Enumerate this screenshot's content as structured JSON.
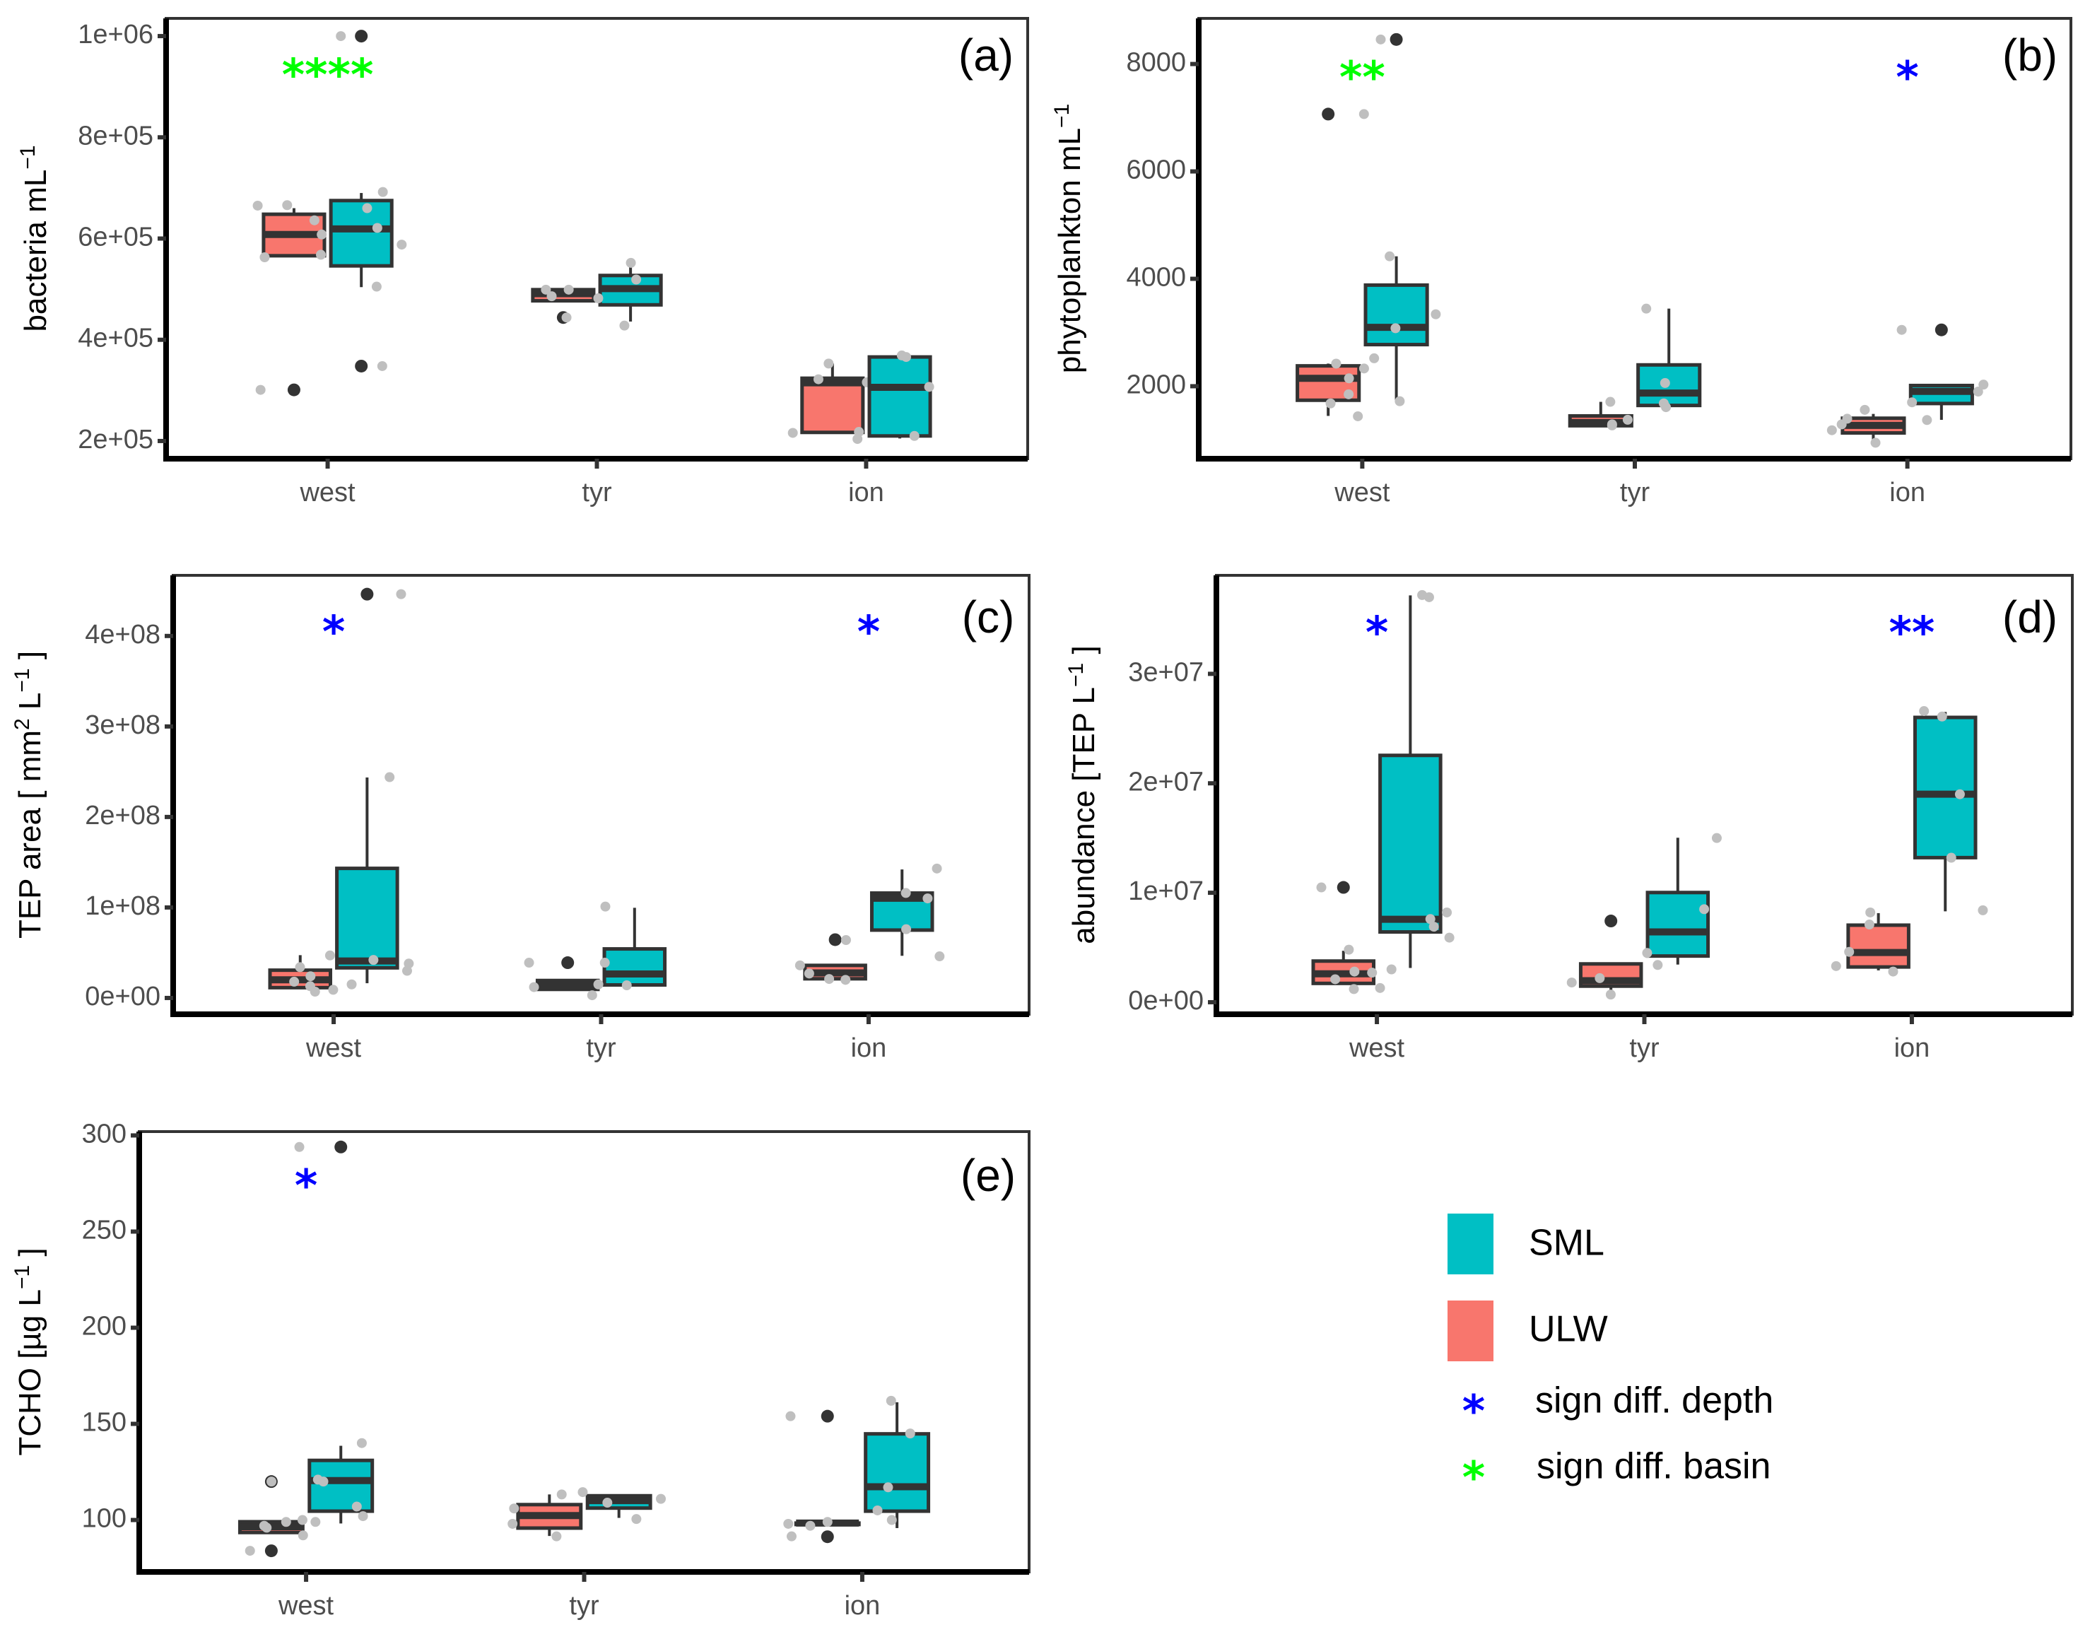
{
  "chart_data": [
    {
      "type": "box",
      "panel_tag": "(a)",
      "ylabel": "bacteria mL",
      "ylabel_sup": "−1",
      "categories": [
        "west",
        "tyr",
        "ion"
      ],
      "yticks": [
        200000,
        400000,
        600000,
        800000,
        1000000
      ],
      "ytick_labels": [
        "2e+05",
        "4e+05",
        "6e+05",
        "8e+05",
        "1e+06"
      ],
      "ylim": [
        165000,
        1035000
      ],
      "series": [
        {
          "name": "ULW",
          "boxes": [
            {
              "category": "west",
              "q1": 566000,
              "median": 608000,
              "q3": 648000,
              "lower": 566000,
              "upper": 660000,
              "outliers": [
                301000
              ],
              "points": [
                636000,
                665000,
                666000,
                608000,
                563000,
                568000,
                301000
              ]
            },
            {
              "category": "tyr",
              "q1": 477000,
              "median": 491000,
              "q3": 499000,
              "lower": 477000,
              "upper": 499000,
              "outliers": [
                444000
              ],
              "points": [
                499000,
                486000,
                499000,
                444000
              ]
            },
            {
              "category": "ion",
              "q1": 217000,
              "median": 315000,
              "q3": 324000,
              "lower": 217000,
              "upper": 353000,
              "outliers": [],
              "points": [
                353000,
                322000,
                316000,
                216000,
                218000
              ]
            }
          ]
        },
        {
          "name": "SML",
          "boxes": [
            {
              "category": "west",
              "q1": 546000,
              "median": 619000,
              "q3": 675000,
              "lower": 504000,
              "upper": 690000,
              "outliers": [
                1000000,
                348000
              ],
              "points": [
                692000,
                660000,
                621000,
                588000,
                505000,
                1000000,
                348000
              ]
            },
            {
              "category": "tyr",
              "q1": 469000,
              "median": 501000,
              "q3": 527000,
              "lower": 436000,
              "upper": 552000,
              "outliers": [],
              "points": [
                552000,
                519000,
                482000,
                428000
              ]
            },
            {
              "category": "ion",
              "q1": 210000,
              "median": 306000,
              "q3": 366000,
              "lower": 205000,
              "upper": 366000,
              "outliers": [],
              "points": [
                369000,
                366000,
                307000,
                204000,
                210000
              ]
            }
          ]
        }
      ],
      "significance": [
        {
          "category": "west",
          "label": "****",
          "kind": "basin",
          "y": 924000
        }
      ]
    },
    {
      "type": "box",
      "panel_tag": "(b)",
      "ylabel": "phytoplankton mL",
      "ylabel_sup": "−1",
      "categories": [
        "west",
        "tyr",
        "ion"
      ],
      "yticks": [
        2000,
        4000,
        6000,
        8000
      ],
      "ytick_labels": [
        "2000",
        "4000",
        "6000",
        "8000"
      ],
      "ylim": [
        650,
        8850
      ],
      "series": [
        {
          "name": "ULW",
          "boxes": [
            {
              "category": "west",
              "q1": 1739,
              "median": 2147,
              "q3": 2379,
              "lower": 1447,
              "upper": 2421,
              "outliers": [
                7068
              ],
              "points": [
                2421,
                2330,
                2147,
                1850,
                1680,
                1440,
                7068
              ]
            },
            {
              "category": "tyr",
              "q1": 1264,
              "median": 1325,
              "q3": 1447,
              "lower": 1264,
              "upper": 1709,
              "outliers": [],
              "points": [
                1709,
                1375,
                1290,
                1270
              ]
            },
            {
              "category": "ion",
              "q1": 1130,
              "median": 1270,
              "q3": 1404,
              "lower": 947,
              "upper": 1484,
              "outliers": [],
              "points": [
                1560,
                1395,
                1290,
                1180,
                947
              ]
            }
          ]
        },
        {
          "name": "SML",
          "boxes": [
            {
              "category": "west",
              "q1": 2775,
              "median": 3097,
              "q3": 3883,
              "lower": 1721,
              "upper": 4419,
              "outliers": [
                8457
              ],
              "points": [
                4419,
                3340,
                3080,
                2520,
                1721,
                8457
              ]
            },
            {
              "category": "tyr",
              "q1": 1642,
              "median": 1873,
              "q3": 2397,
              "lower": 1618,
              "upper": 3445,
              "outliers": [],
              "points": [
                3445,
                2060,
                1680,
                1610
              ]
            },
            {
              "category": "ion",
              "q1": 1678,
              "median": 1904,
              "q3": 2013,
              "lower": 1374,
              "upper": 2013,
              "outliers": [
                3049
              ],
              "points": [
                2030,
                1900,
                1700,
                1370,
                3049
              ]
            }
          ]
        }
      ],
      "significance": [
        {
          "category": "west",
          "label": "**",
          "kind": "basin",
          "y": 7756
        },
        {
          "category": "ion",
          "label": "*",
          "kind": "depth",
          "y": 7756
        }
      ]
    },
    {
      "type": "box",
      "panel_tag": "(c)",
      "ylabel": "TEP area [ mm",
      "ylabel_sup": "2",
      "ylabel_tail": "  L",
      "ylabel_tail_sup": "−1",
      "ylabel_close": "]",
      "categories": [
        "west",
        "tyr",
        "ion"
      ],
      "yticks": [
        0,
        100000000,
        200000000,
        300000000,
        400000000
      ],
      "ytick_labels": [
        "0e+00",
        "1e+08",
        "2e+08",
        "3e+08",
        "4e+08"
      ],
      "ylim": [
        -18000000,
        467000000
      ],
      "series": [
        {
          "name": "ULW",
          "boxes": [
            {
              "category": "west",
              "q1": 11400000,
              "median": 20100000,
              "q3": 30700000,
              "lower": 11400000,
              "upper": 47300000,
              "outliers": [],
              "points": [
                47000000,
                34000000,
                24000000,
                18000000,
                13000000,
                9000000,
                7000000
              ]
            },
            {
              "category": "tyr",
              "q1": 9500000,
              "median": 15200000,
              "q3": 19300000,
              "lower": 9500000,
              "upper": 19300000,
              "outliers": [
                39000000
              ],
              "points": [
                39000000,
                12000000,
                3000000
              ]
            },
            {
              "category": "ion",
              "q1": 21200000,
              "median": 27700000,
              "q3": 36000000,
              "lower": 21200000,
              "upper": 36000000,
              "outliers": [
                64400000
              ],
              "points": [
                64000000,
                36000000,
                27000000,
                21000000,
                20000000
              ]
            }
          ]
        },
        {
          "name": "SML",
          "boxes": [
            {
              "category": "west",
              "q1": 33300000,
              "median": 40900000,
              "q3": 143200000,
              "lower": 16300000,
              "upper": 243600000,
              "outliers": [
                446200000
              ],
              "points": [
                244000000,
                42000000,
                38000000,
                30000000,
                15000000,
                446200000
              ]
            },
            {
              "category": "tyr",
              "q1": 14400000,
              "median": 26500000,
              "q3": 54200000,
              "lower": 14400000,
              "upper": 99600000,
              "outliers": [],
              "points": [
                101000000,
                39000000,
                15000000,
                14000000
              ]
            },
            {
              "category": "ion",
              "q1": 75000000,
              "median": 110200000,
              "q3": 115900000,
              "lower": 46600000,
              "upper": 142000000,
              "outliers": [],
              "points": [
                143000000,
                116000000,
                110000000,
                76000000,
                46000000
              ]
            }
          ]
        }
      ],
      "significance": [
        {
          "category": "west",
          "label": "*",
          "kind": "depth",
          "y": 405000000
        },
        {
          "category": "ion",
          "label": "*",
          "kind": "depth",
          "y": 405000000
        }
      ]
    },
    {
      "type": "box",
      "panel_tag": "(d)",
      "ylabel": "abundance [TEP",
      "ylabel_tail": "  L",
      "ylabel_tail_sup": "−1",
      "ylabel_close": "]",
      "categories": [
        "west",
        "tyr",
        "ion"
      ],
      "yticks": [
        0,
        10000000,
        20000000,
        30000000
      ],
      "ytick_labels": [
        "0e+00",
        "1e+07",
        "2e+07",
        "3e+07"
      ],
      "ylim": [
        -1100000,
        39000000
      ],
      "series": [
        {
          "name": "ULW",
          "boxes": [
            {
              "category": "west",
              "q1": 1720000,
              "median": 2600000,
              "q3": 3760000,
              "lower": 1720000,
              "upper": 4700000,
              "outliers": [
                10490000
              ],
              "points": [
                4800000,
                2800000,
                2700000,
                2100000,
                1300000,
                1200000,
                10490000
              ]
            },
            {
              "category": "tyr",
              "q1": 1470000,
              "median": 1970000,
              "q3": 3500000,
              "lower": 620000,
              "upper": 3500000,
              "outliers": [
                7420000
              ],
              "points": [
                2200000,
                1800000,
                700000,
                7400000
              ]
            },
            {
              "category": "ion",
              "q1": 3220000,
              "median": 4540000,
              "q3": 7040000,
              "lower": 2910000,
              "upper": 8140000,
              "outliers": [],
              "points": [
                8200000,
                7100000,
                4600000,
                3300000,
                2800000
              ]
            }
          ]
        },
        {
          "name": "SML",
          "boxes": [
            {
              "category": "west",
              "q1": 6420000,
              "median": 7580000,
              "q3": 22550000,
              "lower": 3130000,
              "upper": 37170000,
              "outliers": [],
              "points": [
                37200000,
                37000000,
                8200000,
                7600000,
                6900000,
                5900000,
                3000000
              ]
            },
            {
              "category": "tyr",
              "q1": 4220000,
              "median": 6420000,
              "q3": 10020000,
              "lower": 3440000,
              "upper": 15030000,
              "outliers": [],
              "points": [
                15000000,
                8500000,
                4500000,
                3400000
              ]
            },
            {
              "category": "ion",
              "q1": 13210000,
              "median": 19010000,
              "q3": 26020000,
              "lower": 8300000,
              "upper": 26520000,
              "outliers": [],
              "points": [
                26600000,
                26100000,
                19000000,
                13200000,
                8400000
              ]
            }
          ]
        }
      ],
      "significance": [
        {
          "category": "west",
          "label": "*",
          "kind": "depth",
          "y": 33800000
        },
        {
          "category": "ion",
          "label": "**",
          "kind": "depth",
          "y": 33800000
        }
      ]
    },
    {
      "type": "box",
      "panel_tag": "(e)",
      "ylabel": "TCHO [µg",
      "ylabel_tail": "  L",
      "ylabel_tail_sup": "−1",
      "ylabel_close": "]",
      "categories": [
        "west",
        "tyr",
        "ion"
      ],
      "yticks": [
        100,
        150,
        200,
        250,
        300
      ],
      "ytick_labels": [
        "100",
        "150",
        "200",
        "250",
        "300"
      ],
      "ylim": [
        73,
        302
      ],
      "series": [
        {
          "name": "ULW",
          "boxes": [
            {
              "category": "west",
              "q1": 93.5,
              "median": 96.5,
              "q3": 99.1,
              "lower": 93.1,
              "upper": 99.8,
              "outliers": [
                120,
                84
              ],
              "points": [
                100,
                97,
                99,
                96,
                92,
                84,
                120
              ]
            },
            {
              "category": "tyr",
              "q1": 95.8,
              "median": 102.3,
              "q3": 108.0,
              "lower": 91.7,
              "upper": 113.3,
              "outliers": [],
              "points": [
                113.3,
                106,
                98,
                91.5
              ]
            },
            {
              "category": "ion",
              "q1": 98.4,
              "median": 98.4,
              "q3": 98.4,
              "lower": 98.4,
              "upper": 98.4,
              "outliers": [
                154,
                91.3
              ],
              "points": [
                154,
                99,
                98,
                97,
                91.5
              ]
            }
          ]
        },
        {
          "name": "SML",
          "boxes": [
            {
              "category": "west",
              "q1": 104.6,
              "median": 120.5,
              "q3": 131.0,
              "lower": 98.2,
              "upper": 138.6,
              "outliers": [
                294
              ],
              "points": [
                140,
                121,
                120,
                107,
                102,
                99,
                294
              ]
            },
            {
              "category": "tyr",
              "q1": 106.2,
              "median": 110.1,
              "q3": 112.6,
              "lower": 101.1,
              "upper": 112.6,
              "outliers": [],
              "points": [
                114.5,
                111,
                109,
                100.5
              ]
            },
            {
              "category": "ion",
              "q1": 104.6,
              "median": 117.3,
              "q3": 144.8,
              "lower": 95.8,
              "upper": 161.2,
              "outliers": [],
              "points": [
                162,
                145,
                117,
                105,
                100
              ]
            }
          ]
        }
      ],
      "significance": [
        {
          "category": "west",
          "label": "*",
          "kind": "depth",
          "y": 274
        }
      ]
    }
  ],
  "legend": {
    "fill_items": [
      {
        "label": "SML",
        "color": "#00BFC4"
      },
      {
        "label": "ULW",
        "color": "#F8766D"
      }
    ],
    "marker_items": [
      {
        "symbol": "*",
        "label": "sign diff. depth",
        "color": "#0000FF"
      },
      {
        "symbol": "*",
        "label": "sign diff. basin",
        "color": "#00FF00"
      }
    ]
  },
  "colors": {
    "ULW": "#F8766D",
    "SML": "#00BFC4",
    "depth": "#0000FF",
    "basin": "#00FF00",
    "jitter": "#BFBFBF",
    "outline": "#333333"
  }
}
